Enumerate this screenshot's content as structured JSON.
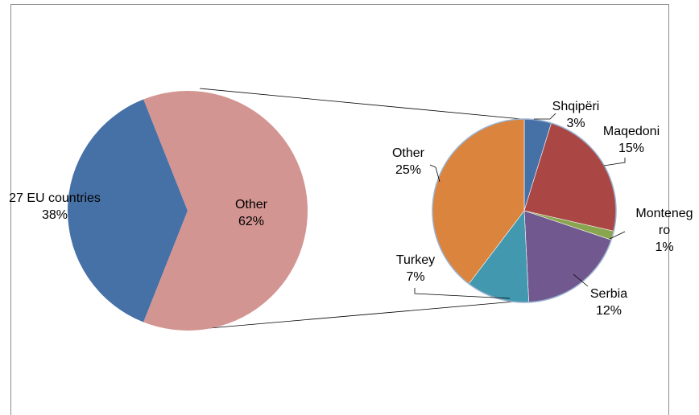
{
  "chart_data": {
    "type": "pie",
    "subtype": "pie-of-pie",
    "main_pie": {
      "slices": [
        {
          "label": "27 EU countries",
          "value": 38,
          "value_label": "38%",
          "color": "#4671a6"
        },
        {
          "label": "Other",
          "value": 62,
          "value_label": "62%",
          "color": "#d39592"
        }
      ]
    },
    "secondary_pie": {
      "parent": "Other",
      "slices": [
        {
          "label": "Shqipëri",
          "value": 3,
          "value_label": "3%",
          "color": "#4671a6"
        },
        {
          "label": "Maqedoni",
          "value": 15,
          "value_label": "15%",
          "color": "#aa4643"
        },
        {
          "label": "Monteneg\nro",
          "value": 1,
          "value_label": "1%",
          "color": "#89a54e"
        },
        {
          "label": "Serbia",
          "value": 12,
          "value_label": "12%",
          "color": "#71588f"
        },
        {
          "label": "Turkey",
          "value": 7,
          "value_label": "7%",
          "color": "#4198af"
        },
        {
          "label": "Other",
          "value": 25,
          "value_label": "25%",
          "color": "#db843d"
        }
      ]
    },
    "legend": "none"
  }
}
